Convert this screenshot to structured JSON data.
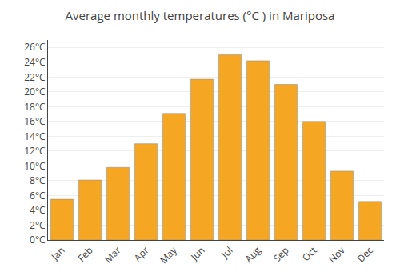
{
  "chart_data": {
    "type": "bar",
    "title": "Average monthly temperatures (°C ) in Mariposa",
    "categories": [
      "Jan",
      "Feb",
      "Mar",
      "Apr",
      "May",
      "Jun",
      "Jul",
      "Aug",
      "Sep",
      "Oct",
      "Nov",
      "Dec"
    ],
    "values": [
      5.5,
      8.1,
      9.8,
      13.0,
      17.1,
      21.7,
      25.0,
      24.2,
      21.0,
      16.0,
      9.3,
      5.2
    ],
    "color": "#F5A623",
    "ylim": [
      0,
      27
    ],
    "yticks": [
      {
        "value": 0,
        "label": "0°C"
      },
      {
        "value": 2,
        "label": "2°C"
      },
      {
        "value": 4,
        "label": "4°C"
      },
      {
        "value": 6,
        "label": "6°C"
      },
      {
        "value": 8,
        "label": "8°C"
      },
      {
        "value": 10,
        "label": "10°C"
      },
      {
        "value": 12,
        "label": "12°C"
      },
      {
        "value": 14,
        "label": "14°C"
      },
      {
        "value": 16,
        "label": "16°C"
      },
      {
        "value": 18,
        "label": "18°C"
      },
      {
        "value": 20,
        "label": "20°C"
      },
      {
        "value": 22,
        "label": "22°C"
      },
      {
        "value": 24,
        "label": "24°C"
      },
      {
        "value": 26,
        "label": "26°C"
      }
    ],
    "grid": true
  }
}
